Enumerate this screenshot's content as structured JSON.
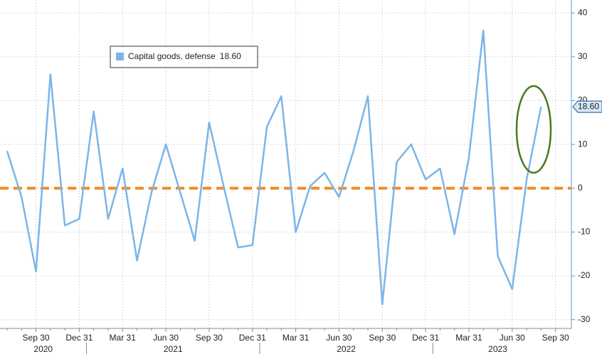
{
  "chart_data": {
    "type": "line",
    "categories": [
      null,
      null,
      "Sep 30",
      null,
      null,
      "Dec 31",
      null,
      null,
      "Mar 31",
      null,
      null,
      "Jun 30",
      null,
      null,
      "Sep 30",
      null,
      null,
      "Dec 31",
      null,
      null,
      "Mar 31",
      null,
      null,
      "Jun 30",
      null,
      null,
      "Sep 30",
      null,
      null,
      "Dec 31",
      null,
      null,
      "Mar 31",
      null,
      null,
      "Jun 30",
      null,
      null,
      "Sep 30"
    ],
    "years": [
      "2020",
      "2021",
      "2022",
      "2023"
    ],
    "series": [
      {
        "name": "Capital goods, defense",
        "color": "#7cb5e8",
        "values": [
          8.5,
          -2,
          -19,
          26,
          -8.5,
          -7,
          17.5,
          -7,
          4.5,
          -16.5,
          -1,
          10,
          -1,
          -12,
          15,
          0.5,
          -13.5,
          -13,
          14,
          21,
          -10,
          0.5,
          3.5,
          -2,
          8.5,
          21,
          -26.5,
          6,
          10,
          2,
          4.5,
          -10.5,
          7,
          36,
          -15.5,
          -23,
          2,
          18.6,
          null
        ],
        "last_value_label": "18.60"
      }
    ],
    "reference_line": {
      "value": 0,
      "color": "#f28c28"
    },
    "ylim": [
      -32,
      41
    ],
    "yticks": [
      -30,
      -20,
      -10,
      0,
      10,
      20,
      30,
      40
    ],
    "y_axis_side": "right",
    "grid": true
  }
}
